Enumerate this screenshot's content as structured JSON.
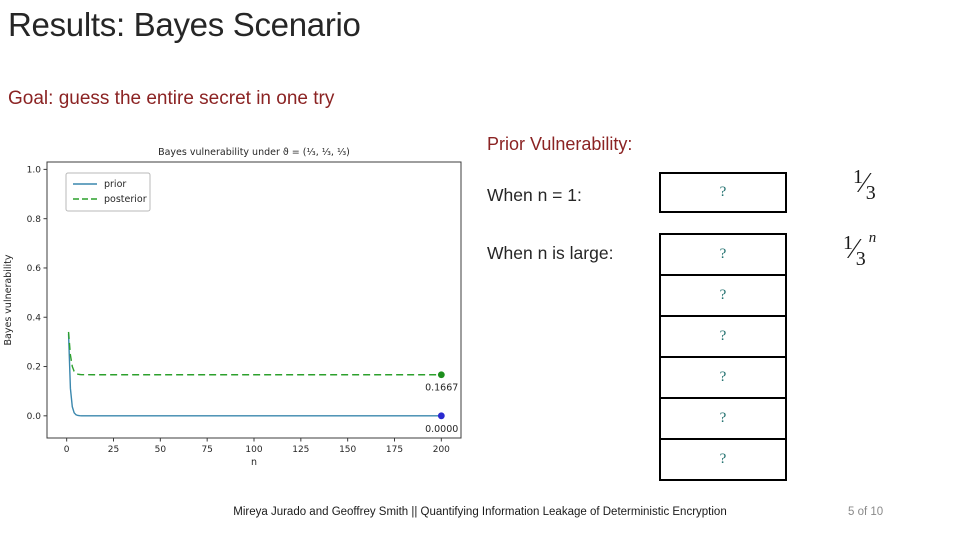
{
  "slide": {
    "title": "Results: Bayes Scenario",
    "subtitle": "Goal: guess the entire secret in one try",
    "footer": "Mireya Jurado and Geoffrey Smith || Quantifying Information Leakage of Deterministic Encryption",
    "page_number": "5 of 10"
  },
  "right_panel": {
    "heading": "Prior Vulnerability:",
    "when_n1_label": "When n = 1:",
    "when_large_label": "When n is large:",
    "n1_box_value": "?",
    "stack_values": [
      "?",
      "?",
      "?",
      "?",
      "?",
      "?"
    ],
    "n1_answer": {
      "numerator": "1",
      "denominator": "3"
    },
    "large_answer": {
      "numerator": "1",
      "denominator": "3",
      "exponent": "n"
    }
  },
  "colors": {
    "accent_dark_red": "#8b2323",
    "question_teal": "#20706e",
    "prior_line": "#3a87ad",
    "posterior_line": "#2ca02c",
    "prior_end_marker": "#2a2ad0",
    "posterior_end_marker": "#1e8f1e"
  },
  "chart_data": {
    "type": "line",
    "title": "Bayes vulnerability under ϑ = (¹⁄₃, ¹⁄₃, ¹⁄₃)",
    "xlabel": "n",
    "ylabel": "Bayes vulnerability",
    "xlim": [
      0,
      200
    ],
    "ylim": [
      0.0,
      1.0
    ],
    "xticks": [
      0,
      25,
      50,
      75,
      100,
      125,
      150,
      175,
      200
    ],
    "yticks": [
      0.0,
      0.2,
      0.4,
      0.6,
      0.8,
      1.0
    ],
    "grid": false,
    "legend_position": "upper-left",
    "series": [
      {
        "name": "prior",
        "color": "#3a87ad",
        "style": "solid",
        "x": [
          1,
          2,
          3,
          4,
          5,
          6,
          7,
          8,
          10,
          15,
          200
        ],
        "y": [
          0.3333,
          0.1111,
          0.037,
          0.0123,
          0.0041,
          0.0014,
          0.0005,
          0.0002,
          0.0,
          0.0,
          0.0
        ],
        "end_marker": {
          "x": 200,
          "y": 0.0,
          "color": "#2a2ad0",
          "label": "0.0000"
        }
      },
      {
        "name": "posterior",
        "color": "#2ca02c",
        "style": "dashed",
        "x": [
          1,
          2,
          3,
          4,
          5,
          6,
          7,
          8,
          10,
          15,
          200
        ],
        "y": [
          0.3402,
          0.2469,
          0.2004,
          0.1803,
          0.1723,
          0.169,
          0.1677,
          0.1671,
          0.1668,
          0.1667,
          0.1667
        ],
        "end_marker": {
          "x": 200,
          "y": 0.1667,
          "color": "#1e8f1e",
          "label": "0.1667"
        }
      }
    ]
  }
}
